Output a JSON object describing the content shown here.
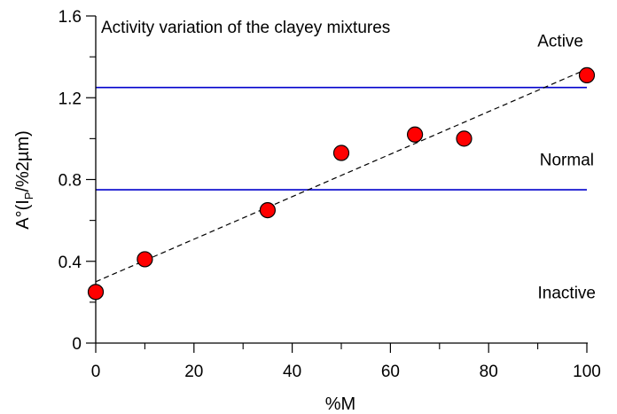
{
  "chart_data": {
    "type": "scatter",
    "title": "Activity variation of the clayey mixtures",
    "xlabel": "%M",
    "ylabel": {
      "main": "A°(I",
      "sub": "P",
      "rest": "/%2µm)"
    },
    "xlim": [
      0,
      100
    ],
    "ylim": [
      0,
      1.6
    ],
    "x_ticks": [
      0,
      20,
      40,
      60,
      80,
      100
    ],
    "x_tick_labels": [
      "0",
      "20",
      "40",
      "60",
      "80",
      "100"
    ],
    "x_minor_ticks": [
      10,
      30,
      50,
      70,
      90
    ],
    "y_ticks": [
      0,
      0.4,
      0.8,
      1.2,
      1.6
    ],
    "y_tick_labels": [
      "0",
      "0.4",
      "0.8",
      "1.2",
      "1.6"
    ],
    "y_minor_ticks": [
      0.2,
      0.6,
      1.0,
      1.4
    ],
    "grid": false,
    "points": [
      {
        "x": 0,
        "y": 0.25
      },
      {
        "x": 10,
        "y": 0.41
      },
      {
        "x": 35,
        "y": 0.65
      },
      {
        "x": 50,
        "y": 0.93
      },
      {
        "x": 65,
        "y": 1.02
      },
      {
        "x": 75,
        "y": 1.0
      },
      {
        "x": 100,
        "y": 1.31
      }
    ],
    "point_color": "#ff0000",
    "trend_line": {
      "x": [
        0,
        100
      ],
      "y": [
        0.3,
        1.34
      ],
      "style": "dashed",
      "color": "#000000"
    },
    "threshold_lines": [
      {
        "y": 0.75,
        "color": "#0000cc"
      },
      {
        "y": 1.25,
        "color": "#0000cc"
      }
    ],
    "regions": [
      {
        "label": "Active",
        "y": 1.48
      },
      {
        "label": "Normal",
        "y": 0.9
      },
      {
        "label": "Inactive",
        "y": 0.25
      }
    ]
  }
}
